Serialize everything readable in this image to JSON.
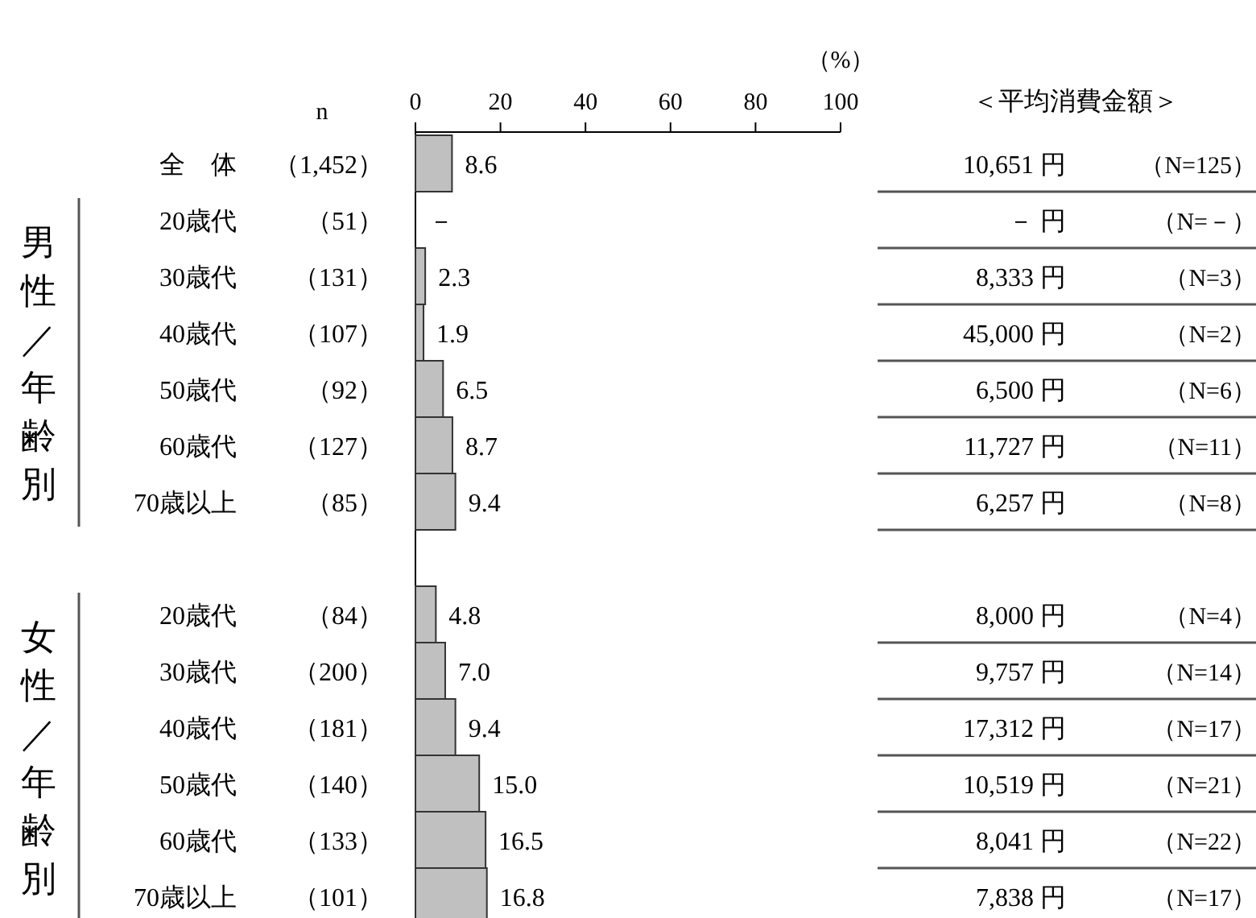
{
  "chart_data": {
    "type": "bar",
    "orientation": "horizontal",
    "x2label": "（%）",
    "categories": [
      "全　体",
      "20歳代",
      "30歳代",
      "40歳代",
      "50歳代",
      "60歳代",
      "70歳以上",
      null,
      "20歳代",
      "30歳代",
      "40歳代",
      "50歳代",
      "60歳代",
      "70歳以上"
    ],
    "values": [
      8.6,
      null,
      2.3,
      1.9,
      6.5,
      8.7,
      9.4,
      null,
      4.8,
      7.0,
      9.4,
      15.0,
      16.5,
      16.8
    ],
    "value_labels": [
      "8.6",
      "－",
      "2.3",
      "1.9",
      "6.5",
      "8.7",
      "9.4",
      null,
      "4.8",
      "7.0",
      "9.4",
      "15.0",
      "16.5",
      "16.8"
    ],
    "color": "#c0c0c0",
    "x2lim": [
      0,
      100
    ],
    "x2ticks": [
      0,
      20,
      40,
      60,
      80,
      100
    ],
    "grid": false,
    "legend": false,
    "annotations": [
      "n",
      "＜平均消費金額＞",
      "男性／年齢別",
      "女性／年齢別",
      "（1,452）",
      "（51）",
      "（131）",
      "（107）",
      "（92）",
      "（127）",
      "（85）",
      "（84）",
      "（200）",
      "（181）",
      "（140）",
      "（133）",
      "（101）",
      "10,651 円",
      "－ 円",
      "8,333 円",
      "45,000 円",
      "6,500 円",
      "11,727 円",
      "6,257 円",
      "8,000 円",
      "9,757 円",
      "17,312 円",
      "10,519 円",
      "8,041 円",
      "7,838 円",
      "（N=125）",
      "（N=－）",
      "（N=3）",
      "（N=2）",
      "（N=6）",
      "（N=11）",
      "（N=8）",
      "（N=4）",
      "（N=14）",
      "（N=17）",
      "（N=21）",
      "（N=22）",
      "（N=17）"
    ]
  }
}
